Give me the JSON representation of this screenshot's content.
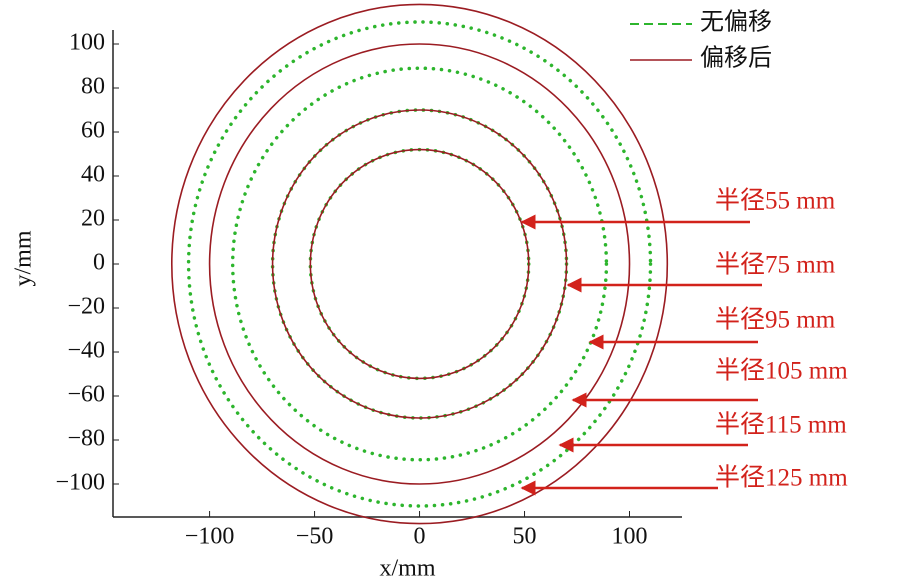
{
  "chart_data": {
    "type": "circle",
    "x_label": "x/mm",
    "y_label": "y/mm",
    "xlim": [
      -146,
      125
    ],
    "ylim": [
      -115,
      120
    ],
    "xticks": [
      {
        "value": -100,
        "label": "−100"
      },
      {
        "value": -50,
        "label": "−50"
      },
      0,
      50,
      100
    ],
    "yticks": [
      {
        "value": -100,
        "label": "−100"
      },
      {
        "value": -80,
        "label": "−80"
      },
      {
        "value": -60,
        "label": "−60"
      },
      {
        "value": -40,
        "label": "−40"
      },
      {
        "value": -20,
        "label": "−20"
      },
      0,
      20,
      40,
      60,
      80,
      100
    ],
    "series": [
      {
        "name": "无偏移",
        "color": "#2db52d",
        "style": "dotted",
        "values": [
          52,
          70,
          89,
          110
        ]
      },
      {
        "name": "偏移后",
        "color": "#9b1c22",
        "style": "solid",
        "values": [
          52,
          70,
          100,
          118
        ]
      }
    ],
    "annotations": [
      "半径55 mm",
      "半径75 mm",
      "半径95 mm",
      "半径105 mm",
      "半径115 mm",
      "半径125 mm"
    ],
    "legend": "upper right"
  }
}
